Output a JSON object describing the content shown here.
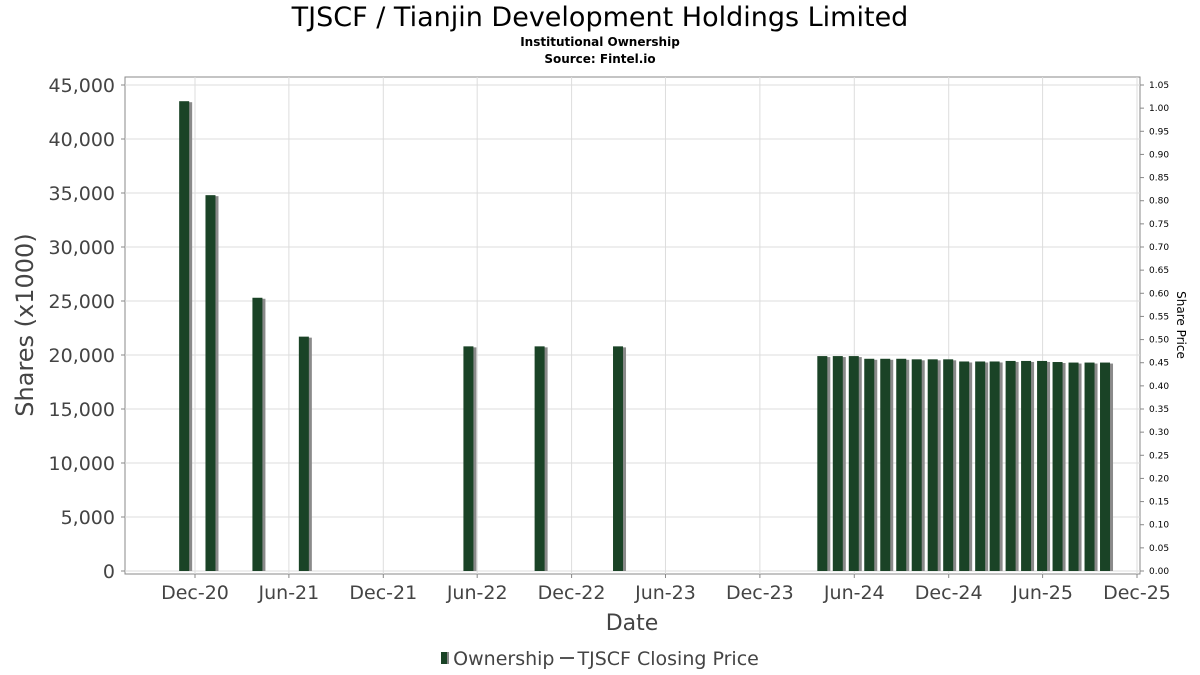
{
  "chart_data": {
    "type": "bar",
    "title": "TJSCF / Tianjin Development Holdings Limited",
    "subtitle": "Institutional Ownership",
    "source": "Source: Fintel.io",
    "xlabel": "Date",
    "ylabel": "Shares (x1000)",
    "y2label": "Share Price",
    "ylim": [
      0,
      45000
    ],
    "y2lim": [
      0,
      1.05
    ],
    "yticks": [
      "0",
      "5,000",
      "10,000",
      "15,000",
      "20,000",
      "25,000",
      "30,000",
      "35,000",
      "40,000",
      "45,000"
    ],
    "y2ticks": [
      "0.00",
      "0.05",
      "0.10",
      "0.15",
      "0.20",
      "0.25",
      "0.30",
      "0.35",
      "0.40",
      "0.45",
      "0.50",
      "0.55",
      "0.60",
      "0.65",
      "0.70",
      "0.75",
      "0.80",
      "0.85",
      "0.90",
      "0.95",
      "1.00",
      "1.05"
    ],
    "xticks": [
      "Dec-20",
      "Jun-21",
      "Dec-21",
      "Jun-22",
      "Dec-22",
      "Jun-23",
      "Dec-23",
      "Jun-24",
      "Dec-24",
      "Jun-25",
      "Dec-25"
    ],
    "grid": true,
    "legend_position": "bottom",
    "series": [
      {
        "name": "Ownership",
        "color": "#1a4326",
        "x": [
          "2020-11-10",
          "2020-12-31",
          "2021-04-01",
          "2021-06-30",
          "2022-05-15",
          "2022-09-30",
          "2023-03-01",
          "2024-03-31",
          "2024-04-30",
          "2024-05-31",
          "2024-06-30",
          "2024-07-31",
          "2024-08-31",
          "2024-09-30",
          "2024-10-31",
          "2024-11-30",
          "2024-12-31",
          "2025-01-31",
          "2025-02-28",
          "2025-03-31",
          "2025-04-30",
          "2025-05-31",
          "2025-06-30",
          "2025-07-31",
          "2025-08-31",
          "2025-09-30"
        ],
        "values": [
          43500,
          34800,
          25300,
          21700,
          20800,
          20800,
          20800,
          19900,
          19900,
          19900,
          19650,
          19650,
          19650,
          19600,
          19600,
          19600,
          19400,
          19400,
          19400,
          19450,
          19450,
          19450,
          19350,
          19300,
          19300,
          19300
        ]
      },
      {
        "name": "TJSCF Closing Price",
        "color": "#555555",
        "values": []
      }
    ]
  }
}
